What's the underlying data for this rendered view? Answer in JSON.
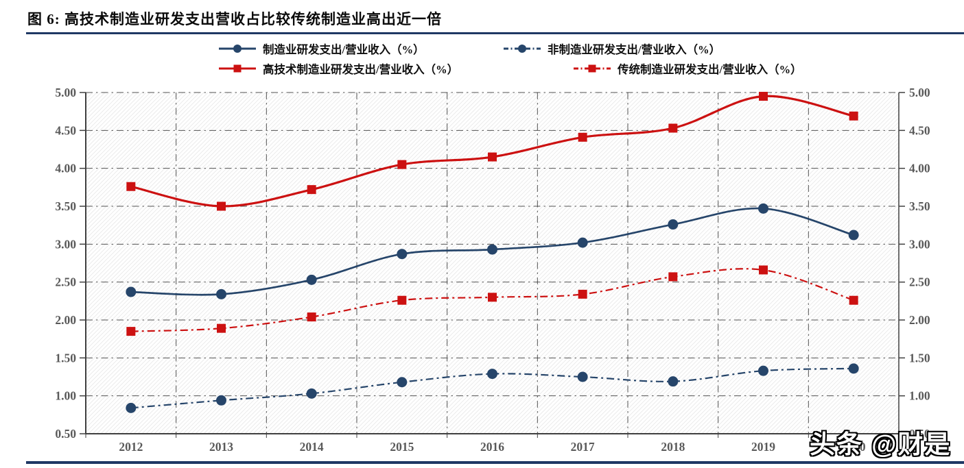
{
  "page": {
    "title": "图 6:  高技术制造业研发支出营收占比较传统制造业高出近一倍",
    "watermark": "头条 @财是",
    "accent_color": "#1F3864"
  },
  "chart_data": {
    "type": "line",
    "title": "高技术制造业研发支出营收占比较传统制造业高出近一倍",
    "xlabel": "",
    "ylabel": "研发支出/营业收入（%）",
    "categories": [
      "2012",
      "2013",
      "2014",
      "2015",
      "2016",
      "2017",
      "2018",
      "2019",
      "2020"
    ],
    "series": [
      {
        "name": "制造业研发支出/营业收入（%）",
        "color": "#26456A",
        "line_style": "solid",
        "marker": "circle",
        "values": [
          2.37,
          2.34,
          2.53,
          2.87,
          2.93,
          3.02,
          3.26,
          3.47,
          3.12
        ]
      },
      {
        "name": "非制造业研发支出/营业收入（%）",
        "color": "#26456A",
        "line_style": "dash-dot",
        "marker": "circle",
        "values": [
          0.84,
          0.94,
          1.03,
          1.18,
          1.29,
          1.25,
          1.19,
          1.33,
          1.36
        ]
      },
      {
        "name": "高技术制造业研发支出/营业收入（%）",
        "color": "#CC1111",
        "line_style": "solid",
        "marker": "square",
        "values": [
          3.76,
          3.5,
          3.72,
          4.05,
          4.15,
          4.41,
          4.53,
          4.95,
          4.69
        ]
      },
      {
        "name": "传统制造业研发支出/营业收入（%）",
        "color": "#CC1111",
        "line_style": "dash-dot",
        "marker": "square",
        "values": [
          1.85,
          1.89,
          2.04,
          2.26,
          2.3,
          2.34,
          2.57,
          2.66,
          2.26
        ]
      }
    ],
    "ylim": [
      0.5,
      5.0
    ],
    "ytick_step": 0.5,
    "ytick_labels": [
      "0.50",
      "1.00",
      "1.50",
      "2.00",
      "2.50",
      "3.00",
      "3.50",
      "4.00",
      "4.50",
      "5.00"
    ],
    "grid": true,
    "grid_style": "dash-dot",
    "grid_color": "#3f3f3f",
    "axis_label_color": "#595959",
    "legend_position": "top",
    "secondary_y_axis": true
  }
}
